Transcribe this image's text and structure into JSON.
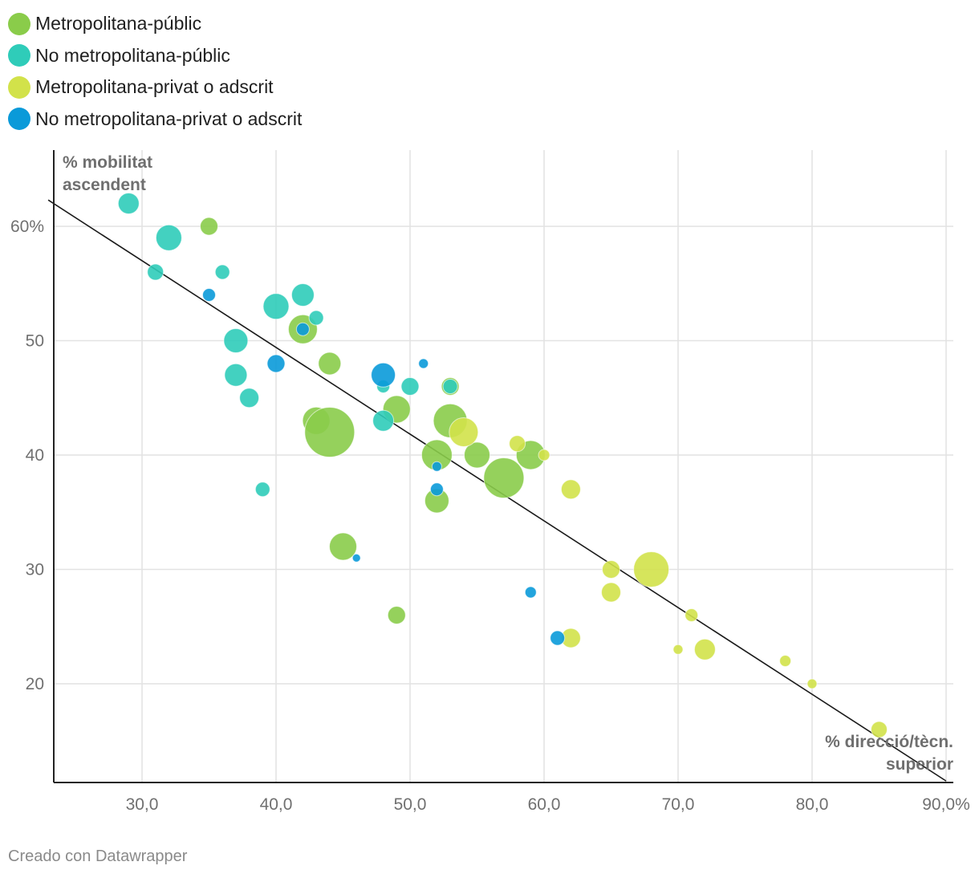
{
  "legend": {
    "items": [
      {
        "label": "Metropolitana-públic",
        "color": "#8acc4a"
      },
      {
        "label": "No metropolitana-públic",
        "color": "#2fccb9"
      },
      {
        "label": "Metropolitana-privat o adscrit",
        "color": "#d2e24a"
      },
      {
        "label": "No metropolitana-privat o adscrit",
        "color": "#0a9ad9"
      }
    ]
  },
  "footer": {
    "credit": "Creado con Datawrapper"
  },
  "chart_data": {
    "type": "scatter",
    "xlabel": "% direcció/tècn. superior",
    "ylabel": "% mobilitat ascendent",
    "xlim": [
      23,
      90
    ],
    "ylim": [
      11.5,
      67.5
    ],
    "x_ticks": [
      {
        "value": 30,
        "label": "30,0"
      },
      {
        "value": 40,
        "label": "40,0"
      },
      {
        "value": 50,
        "label": "50,0"
      },
      {
        "value": 60,
        "label": "60,0"
      },
      {
        "value": 70,
        "label": "70,0"
      },
      {
        "value": 80,
        "label": "80,0"
      },
      {
        "value": 90,
        "label": "90,0%"
      }
    ],
    "y_ticks": [
      {
        "value": 20,
        "label": "20"
      },
      {
        "value": 30,
        "label": "30"
      },
      {
        "value": 40,
        "label": "40"
      },
      {
        "value": 50,
        "label": "50"
      },
      {
        "value": 60,
        "label": "60%"
      }
    ],
    "trend_line": {
      "x1": 23,
      "y1": 62.3,
      "x2": 90,
      "y2": 11.5
    },
    "series": [
      {
        "name": "Metropolitana-públic",
        "color": "#8acc4a",
        "points": [
          {
            "x": 35,
            "y": 60,
            "size": 11
          },
          {
            "x": 42,
            "y": 51,
            "size": 18
          },
          {
            "x": 44,
            "y": 48,
            "size": 14
          },
          {
            "x": 43,
            "y": 43,
            "size": 17
          },
          {
            "x": 44,
            "y": 42,
            "size": 31
          },
          {
            "x": 49,
            "y": 44,
            "size": 17
          },
          {
            "x": 53,
            "y": 46,
            "size": 11
          },
          {
            "x": 53,
            "y": 43,
            "size": 21
          },
          {
            "x": 52,
            "y": 40,
            "size": 19
          },
          {
            "x": 55,
            "y": 40,
            "size": 16
          },
          {
            "x": 57,
            "y": 38,
            "size": 25
          },
          {
            "x": 59,
            "y": 40,
            "size": 18
          },
          {
            "x": 52,
            "y": 36,
            "size": 15
          },
          {
            "x": 45,
            "y": 32,
            "size": 17
          },
          {
            "x": 49,
            "y": 26,
            "size": 11
          }
        ]
      },
      {
        "name": "No metropolitana-públic",
        "color": "#2fccb9",
        "points": [
          {
            "x": 29,
            "y": 62,
            "size": 13
          },
          {
            "x": 32,
            "y": 59,
            "size": 16
          },
          {
            "x": 31,
            "y": 56,
            "size": 10
          },
          {
            "x": 36,
            "y": 56,
            "size": 9
          },
          {
            "x": 42,
            "y": 54,
            "size": 14
          },
          {
            "x": 40,
            "y": 53,
            "size": 16
          },
          {
            "x": 43,
            "y": 52,
            "size": 9
          },
          {
            "x": 37,
            "y": 50,
            "size": 15
          },
          {
            "x": 37,
            "y": 47,
            "size": 14
          },
          {
            "x": 38,
            "y": 45,
            "size": 12
          },
          {
            "x": 48,
            "y": 46,
            "size": 8
          },
          {
            "x": 50,
            "y": 46,
            "size": 11
          },
          {
            "x": 53,
            "y": 46,
            "size": 9
          },
          {
            "x": 48,
            "y": 43,
            "size": 13
          },
          {
            "x": 39,
            "y": 37,
            "size": 9
          }
        ]
      },
      {
        "name": "Metropolitana-privat o adscrit",
        "color": "#d2e24a",
        "points": [
          {
            "x": 54,
            "y": 42,
            "size": 18
          },
          {
            "x": 58,
            "y": 41,
            "size": 10
          },
          {
            "x": 60,
            "y": 40,
            "size": 7
          },
          {
            "x": 62,
            "y": 37,
            "size": 12
          },
          {
            "x": 65,
            "y": 30,
            "size": 11
          },
          {
            "x": 68,
            "y": 30,
            "size": 22
          },
          {
            "x": 65,
            "y": 28,
            "size": 12
          },
          {
            "x": 71,
            "y": 26,
            "size": 8
          },
          {
            "x": 62,
            "y": 24,
            "size": 12
          },
          {
            "x": 70,
            "y": 23,
            "size": 6
          },
          {
            "x": 72,
            "y": 23,
            "size": 13
          },
          {
            "x": 78,
            "y": 22,
            "size": 7
          },
          {
            "x": 80,
            "y": 20,
            "size": 6
          },
          {
            "x": 85,
            "y": 16,
            "size": 10
          }
        ]
      },
      {
        "name": "No metropolitana-privat o adscrit",
        "color": "#0a9ad9",
        "points": [
          {
            "x": 35,
            "y": 54,
            "size": 8
          },
          {
            "x": 42,
            "y": 51,
            "size": 8
          },
          {
            "x": 40,
            "y": 48,
            "size": 11
          },
          {
            "x": 51,
            "y": 48,
            "size": 6
          },
          {
            "x": 48,
            "y": 47,
            "size": 15
          },
          {
            "x": 52,
            "y": 39,
            "size": 6
          },
          {
            "x": 52,
            "y": 37,
            "size": 8
          },
          {
            "x": 46,
            "y": 31,
            "size": 5
          },
          {
            "x": 59,
            "y": 28,
            "size": 7
          },
          {
            "x": 61,
            "y": 24,
            "size": 9
          }
        ]
      }
    ]
  }
}
